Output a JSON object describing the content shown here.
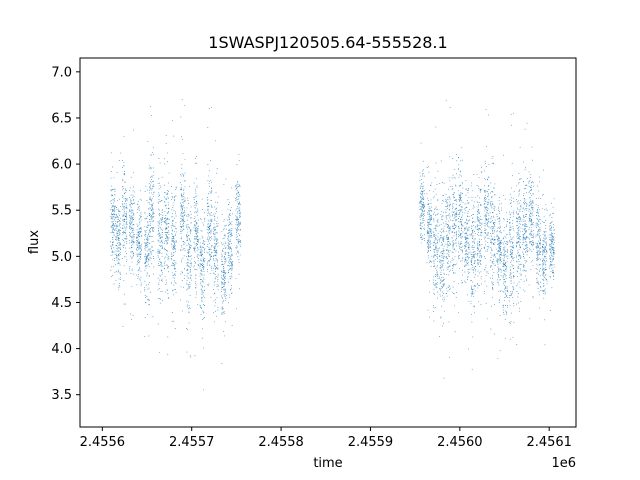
{
  "chart_data": {
    "type": "scatter",
    "title": "1SWASPJ120505.64-555528.1",
    "xlabel": "time",
    "ylabel": "flux",
    "x_offset_label": "1e6",
    "xlim": [
      2455575,
      2456130
    ],
    "ylim": [
      3.15,
      7.15
    ],
    "x_tick_values": [
      2455600,
      2455700,
      2455800,
      2455900,
      2456000,
      2456100
    ],
    "x_tick_labels": [
      "2.4556",
      "2.4557",
      "2.4558",
      "2.4559",
      "2.4560",
      "2.4561"
    ],
    "y_tick_values": [
      3.5,
      4.0,
      4.5,
      5.0,
      5.5,
      6.0,
      6.5,
      7.0
    ],
    "y_tick_labels": [
      "3.5",
      "4.0",
      "4.5",
      "5.0",
      "5.5",
      "6.0",
      "6.5",
      "7.0"
    ],
    "grid": false,
    "marker_color": "#1f77b4",
    "series": [
      {
        "x": [
          2455612,
          2455618,
          2455625,
          2455633,
          2455641,
          2455650,
          2455655,
          2455665,
          2455672,
          2455680,
          2455690,
          2455697,
          2455705,
          2455712,
          2455720,
          2455727,
          2455736,
          2455743,
          2455752,
          2455958,
          2455966,
          2455973,
          2455980,
          2455987,
          2455994,
          2456001,
          2456008,
          2456015,
          2456022,
          2456030,
          2456037,
          2456044,
          2456051,
          2456058,
          2456066,
          2456073,
          2456080,
          2456088,
          2456095,
          2456103
        ],
        "y": [
          5.35,
          5.2,
          5.4,
          5.3,
          5.15,
          5.0,
          5.5,
          5.2,
          5.3,
          5.1,
          5.4,
          5.0,
          5.25,
          4.9,
          5.3,
          5.05,
          4.8,
          5.1,
          5.4,
          5.5,
          5.3,
          5.1,
          4.95,
          5.2,
          5.3,
          5.4,
          5.2,
          5.0,
          5.3,
          5.4,
          5.25,
          5.1,
          4.9,
          5.0,
          5.2,
          5.3,
          5.4,
          5.1,
          5.0,
          5.1
        ],
        "spread": [
          0.45,
          0.4,
          0.5,
          0.45,
          0.4,
          0.6,
          0.5,
          0.6,
          0.55,
          0.6,
          0.6,
          0.55,
          0.55,
          0.6,
          0.55,
          0.55,
          0.5,
          0.5,
          0.45,
          0.35,
          0.45,
          0.55,
          0.55,
          0.6,
          0.6,
          0.55,
          0.5,
          0.6,
          0.55,
          0.55,
          0.55,
          0.5,
          0.6,
          0.65,
          0.6,
          0.55,
          0.5,
          0.5,
          0.45,
          0.35
        ]
      }
    ]
  }
}
